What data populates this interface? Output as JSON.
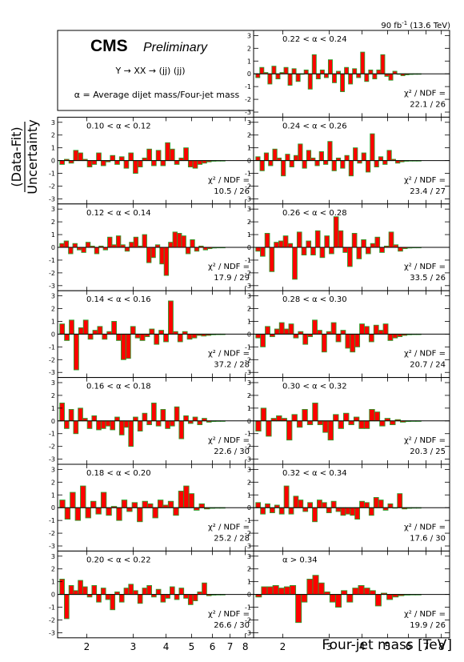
{
  "header": {
    "lumi_label": "90 fb",
    "lumi_sup": "-1",
    "lumi_energy": " (13.6 TeV)",
    "cms": "CMS",
    "preliminary": "Preliminary",
    "process": "Y → XX → (jj) (jj)",
    "alpha_definition": "α = Average dijet mass/Four-jet mass"
  },
  "chart_data": {
    "type": "bar",
    "xlabel": "Four-jet mass [TeV]",
    "ylabel_top": "(Data-Fit)",
    "ylabel_bottom": "Uncertainty",
    "x_scale": "log",
    "xlim": [
      1.55,
      8.6
    ],
    "ylim": [
      -3.4,
      3.4
    ],
    "y_ticks": [
      -3,
      -2,
      -1,
      0,
      1,
      2,
      3
    ],
    "x_tick_labels": [
      2,
      3,
      4,
      5,
      6,
      7,
      8
    ],
    "panels": [
      {
        "alpha_range": "0.22 < α < 0.24",
        "chi2_label": "χ² / NDF =",
        "chi2_value": "22.1 / 26",
        "values": [
          -0.3,
          0.5,
          0.1,
          -0.8,
          0.6,
          -0.4,
          0.1,
          0.5,
          -0.9,
          0.4,
          -0.6,
          0.0,
          0.3,
          -1.2,
          1.5,
          -0.4,
          0.3,
          -0.3,
          1.1,
          -0.7,
          0.2,
          -1.4,
          0.5,
          -0.8,
          0.4,
          -0.3,
          1.7,
          -0.6,
          0.3,
          -0.4,
          0.3,
          1.5,
          -0.2,
          -0.5,
          0.2,
          0.0,
          -0.15,
          -0.08,
          -0.05,
          -0.03,
          -0.02
        ]
      },
      {
        "alpha_range": "0.10 < α < 0.12",
        "chi2_label": "χ² / NDF =",
        "chi2_value": "10.5 / 26",
        "values": [
          -0.3,
          0.1,
          -0.2,
          0.8,
          0.6,
          0.1,
          -0.5,
          -0.3,
          0.6,
          -0.4,
          -0.1,
          0.4,
          -0.3,
          0.3,
          -0.6,
          0.6,
          -1.0,
          -0.5,
          0.2,
          0.9,
          -0.4,
          0.8,
          -0.4,
          1.4,
          0.9,
          -0.3,
          0.2,
          1.0,
          -0.5,
          -0.6,
          -0.3,
          -0.2,
          -0.1,
          -0.05,
          -0.03,
          -0.02
        ]
      },
      {
        "alpha_range": "0.24 < α < 0.26",
        "chi2_label": "χ² / NDF =",
        "chi2_value": "23.4 / 27",
        "values": [
          0.3,
          -0.8,
          0.6,
          -0.4,
          0.9,
          0.2,
          -1.2,
          0.5,
          -0.5,
          0.4,
          1.3,
          -0.6,
          0.8,
          0.2,
          -0.4,
          0.7,
          -0.3,
          1.5,
          -0.8,
          0.2,
          -0.6,
          0.4,
          -1.2,
          1.0,
          -0.2,
          0.6,
          -0.9,
          2.1,
          -0.5,
          0.3,
          -0.3,
          0.8,
          0.1,
          -0.2,
          -0.1,
          -0.05,
          -0.03,
          -0.02,
          -0.01
        ]
      },
      {
        "alpha_range": "0.12 < α < 0.14",
        "chi2_label": "χ² / NDF =",
        "chi2_value": "17.9 / 29",
        "values": [
          0.3,
          0.5,
          -0.5,
          0.3,
          -0.2,
          -0.4,
          0.4,
          0.1,
          -0.5,
          0.1,
          -0.2,
          0.8,
          0.2,
          0.9,
          0.2,
          -0.3,
          0.4,
          0.8,
          0.1,
          1.0,
          -1.2,
          -0.8,
          0.2,
          -1.3,
          -2.2,
          0.4,
          1.2,
          1.1,
          0.9,
          -0.5,
          0.6,
          -0.3,
          0.1,
          -0.2,
          -0.1,
          -0.05,
          -0.03,
          -0.02
        ]
      },
      {
        "alpha_range": "0.26 < α < 0.28",
        "chi2_label": "χ² / NDF =",
        "chi2_value": "33.5 / 26",
        "values": [
          -0.3,
          -0.7,
          1.1,
          -1.9,
          0.4,
          0.5,
          0.9,
          0.3,
          -2.5,
          1.2,
          -0.6,
          0.5,
          -0.6,
          1.3,
          -0.8,
          0.9,
          -0.5,
          2.4,
          1.3,
          -0.4,
          -1.5,
          1.1,
          -0.9,
          0.6,
          -0.5,
          0.3,
          0.8,
          -0.4,
          0.1,
          1.2,
          0.2,
          -0.3,
          -0.1,
          -0.05,
          -0.03,
          -0.02
        ]
      },
      {
        "alpha_range": "0.14 < α < 0.16",
        "chi2_label": "χ² / NDF =",
        "chi2_value": "37.2 / 28",
        "values": [
          0.8,
          -0.5,
          1.1,
          -2.8,
          0.5,
          1.1,
          -0.4,
          0.3,
          0.6,
          -0.4,
          0.2,
          1.0,
          -0.5,
          -2.0,
          -1.9,
          0.6,
          -0.3,
          -0.5,
          -0.2,
          0.4,
          -0.8,
          0.3,
          -0.6,
          2.6,
          0.2,
          -0.6,
          0.2,
          -0.4,
          -0.3,
          -0.1,
          -0.15,
          -0.1,
          -0.05,
          -0.03,
          -0.02
        ]
      },
      {
        "alpha_range": "0.28 < α < 0.30",
        "chi2_label": "χ² / NDF =",
        "chi2_value": "20.7 / 24",
        "values": [
          -0.3,
          -1.0,
          0.6,
          -0.2,
          0.4,
          0.9,
          0.4,
          0.8,
          -0.3,
          0.2,
          -0.8,
          -0.2,
          1.1,
          0.3,
          -1.4,
          0.2,
          0.9,
          -0.6,
          0.3,
          -1.1,
          -1.4,
          -1.0,
          0.8,
          0.6,
          -0.6,
          0.7,
          0.3,
          0.8,
          -0.5,
          -0.3,
          -0.2,
          -0.1,
          -0.05,
          -0.03,
          -0.02
        ]
      },
      {
        "alpha_range": "0.16 < α < 0.18",
        "chi2_label": "χ² / NDF =",
        "chi2_value": "22.6 / 30",
        "values": [
          1.4,
          -0.6,
          0.9,
          -1.0,
          1.0,
          0.2,
          -0.6,
          0.4,
          -0.7,
          -0.6,
          -0.4,
          -0.7,
          0.3,
          -1.1,
          -0.5,
          -2.0,
          0.3,
          -0.8,
          0.6,
          -0.3,
          1.4,
          -0.4,
          0.9,
          -0.6,
          -0.4,
          1.1,
          -1.4,
          0.4,
          -0.2,
          0.3,
          -0.3,
          0.2,
          -0.1,
          -0.05,
          -0.03,
          -0.02
        ]
      },
      {
        "alpha_range": "0.30 < α < 0.32",
        "chi2_label": "χ² / NDF =",
        "chi2_value": "20.3 / 25",
        "values": [
          -0.8,
          1.0,
          -1.2,
          0.2,
          0.4,
          0.2,
          -1.5,
          0.5,
          -0.5,
          0.9,
          -0.3,
          1.4,
          -0.3,
          -0.9,
          -1.5,
          0.5,
          -0.6,
          0.6,
          -0.3,
          0.3,
          -0.6,
          -0.6,
          0.9,
          0.7,
          -0.4,
          0.2,
          -0.3,
          0.1,
          -0.1,
          -0.05,
          -0.03,
          -0.02
        ]
      },
      {
        "alpha_range": "0.18 < α < 0.20",
        "chi2_label": "χ² / NDF =",
        "chi2_value": "25.2 / 28",
        "values": [
          0.6,
          -0.9,
          1.2,
          -1.0,
          1.7,
          -0.8,
          0.5,
          -0.5,
          1.2,
          -0.6,
          0.1,
          -1.0,
          0.6,
          -0.3,
          0.4,
          -1.1,
          0.5,
          0.3,
          -0.8,
          0.6,
          0.2,
          0.5,
          -0.6,
          1.3,
          1.7,
          1.1,
          -0.2,
          0.3,
          -0.1,
          -0.05,
          -0.03,
          -0.02
        ]
      },
      {
        "alpha_range": "0.32 < α < 0.34",
        "chi2_label": "χ² / NDF =",
        "chi2_value": "17.6 / 30",
        "values": [
          0.4,
          -0.5,
          0.3,
          -0.4,
          0.2,
          -0.5,
          1.7,
          -0.5,
          0.9,
          0.6,
          -0.3,
          0.4,
          -1.1,
          0.6,
          0.4,
          -0.4,
          0.5,
          -0.3,
          -0.6,
          -0.5,
          -0.6,
          -0.9,
          0.5,
          0.4,
          -0.6,
          0.8,
          0.6,
          -0.2,
          0.3,
          0.0,
          1.1,
          -0.1,
          -0.05,
          -0.03,
          -0.02
        ]
      },
      {
        "alpha_range": "0.20 < α < 0.22",
        "chi2_label": "χ² / NDF =",
        "chi2_value": "26.6 / 30",
        "values": [
          1.2,
          -1.9,
          0.7,
          0.3,
          1.1,
          0.6,
          -0.2,
          0.7,
          -0.6,
          0.5,
          -0.4,
          -1.2,
          0.2,
          -0.6,
          0.5,
          0.8,
          0.3,
          -0.7,
          0.5,
          0.7,
          -0.2,
          0.4,
          -0.6,
          -0.3,
          0.6,
          -0.4,
          0.5,
          -0.3,
          -0.8,
          -0.5,
          0.2,
          0.9,
          -0.1,
          -0.05,
          -0.03,
          -0.02
        ]
      },
      {
        "alpha_range": "α > 0.34",
        "chi2_label": "χ² / NDF =",
        "chi2_value": "19.9 / 26",
        "values": [
          -0.2,
          0.6,
          0.6,
          0.7,
          0.5,
          0.6,
          0.7,
          -2.2,
          -0.6,
          1.2,
          1.5,
          0.9,
          0.2,
          -0.6,
          -1.0,
          0.3,
          -0.6,
          0.5,
          0.7,
          0.5,
          0.3,
          -0.9,
          0.1,
          -0.4,
          -0.2,
          -0.1,
          -0.05,
          -0.03,
          -0.02
        ]
      }
    ]
  }
}
